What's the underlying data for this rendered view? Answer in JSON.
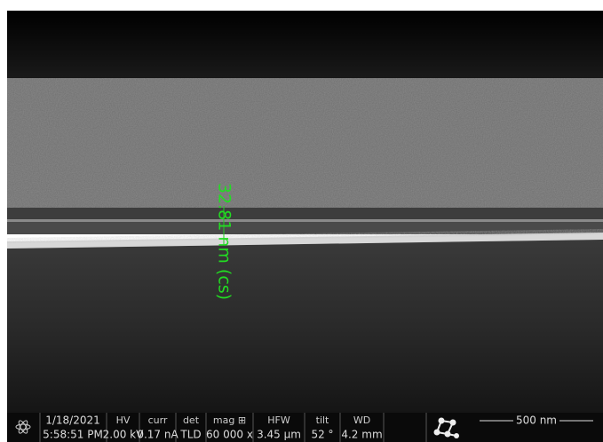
{
  "measurement": {
    "label": "32.81 nm (cs)"
  },
  "info_bar": {
    "date": "1/18/2021",
    "time": "5:58:51 PM",
    "fields": [
      {
        "label": "HV",
        "value": "2.00 kV"
      },
      {
        "label": "curr",
        "value": "0.17 nA"
      },
      {
        "label": "det",
        "value": "TLD"
      },
      {
        "label": "mag ⊞",
        "value": "60 000 x"
      },
      {
        "label": "HFW",
        "value": "3.45 µm"
      },
      {
        "label": "tilt",
        "value": "52 °"
      },
      {
        "label": "WD",
        "value": "4.2 mm"
      }
    ],
    "scale_bar": "500 nm"
  }
}
